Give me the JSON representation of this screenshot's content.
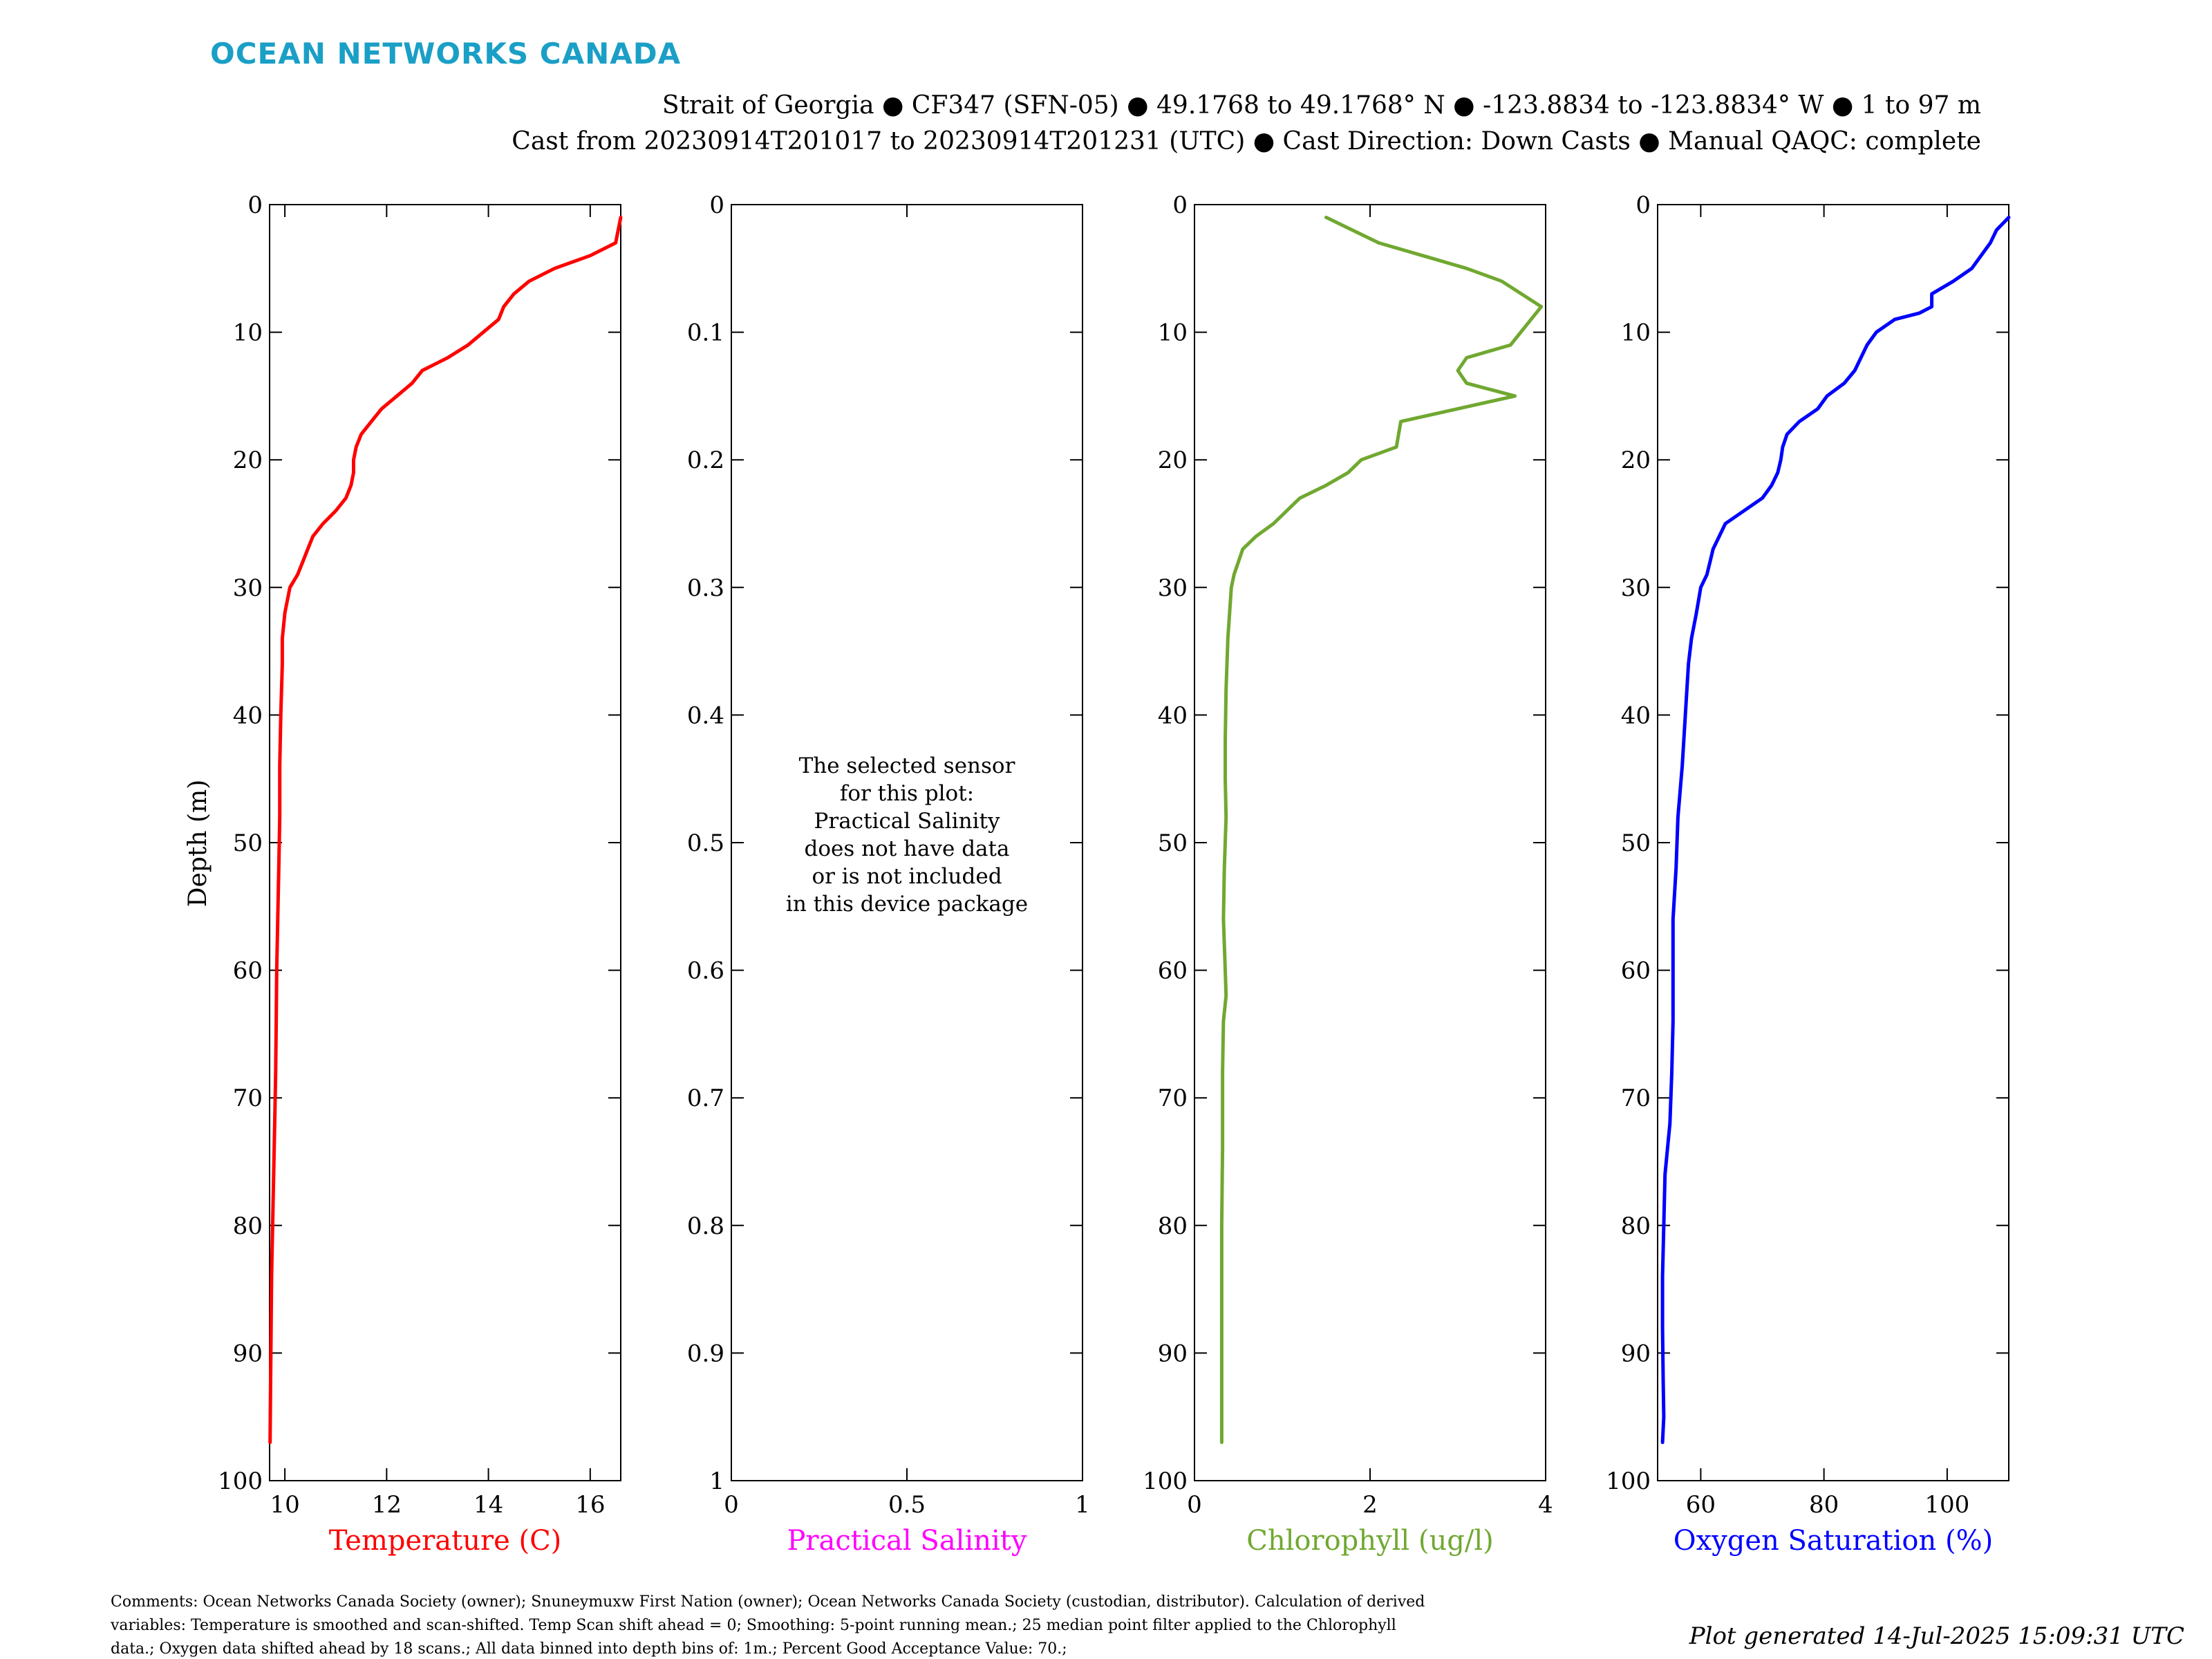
{
  "brand": {
    "text": "OCEAN NETWORKS CANADA",
    "color": "#1a9fc6"
  },
  "header": {
    "line1": "Strait of Georgia ● CF347 (SFN-05) ● 49.1768 to 49.1768° N ● -123.8834 to -123.8834° W ● 1 to 97 m",
    "line2": "Cast from 20230914T201017 to 20230914T201231 (UTC) ● Cast Direction: Down Casts ● Manual QAQC: complete"
  },
  "y_axis_label": "Depth (m)",
  "comments": [
    "Comments: Ocean Networks Canada Society (owner); Snuneymuxw First Nation (owner); Ocean Networks Canada Society (custodian, distributor). Calculation of derived",
    "variables: Temperature is smoothed and scan-shifted. Temp Scan shift ahead = 0; Smoothing: 5-point running mean.; 25 median point filter applied to the Chlorophyll",
    "data.; Oxygen data shifted ahead by 18 scans.; All data binned into depth bins of: 1m.; Percent Good Acceptance Value: 70.;"
  ],
  "generated": "Plot generated 14-Jul-2025 15:09:31 UTC",
  "chart_data": [
    {
      "type": "line",
      "xlabel": "Temperature (C)",
      "ylabel": "Depth (m)",
      "color": "#ff0000",
      "xlim": [
        9.7,
        16.6
      ],
      "xticks": [
        10,
        12,
        14,
        16
      ],
      "ylim": [
        0,
        100
      ],
      "yticks": [
        0,
        10,
        20,
        30,
        40,
        50,
        60,
        70,
        80,
        90,
        100
      ],
      "y_reversed": true,
      "series": [
        {
          "x": [
            16.6,
            16.55,
            16.5,
            16.0,
            15.3,
            14.8,
            14.5,
            14.3,
            14.2,
            13.9,
            13.6,
            13.2,
            12.7,
            12.5,
            12.2,
            11.9,
            11.7,
            11.5,
            11.4,
            11.35,
            11.35,
            11.3,
            11.2,
            11.0,
            10.75,
            10.55,
            10.45,
            10.35,
            10.25,
            10.1,
            10.0,
            9.95,
            9.95,
            9.92,
            9.9,
            9.9,
            9.88,
            9.86,
            9.84,
            9.83,
            9.82,
            9.8,
            9.78,
            9.76,
            9.74,
            9.73,
            9.72,
            9.71
          ],
          "y": [
            1,
            2,
            3,
            4,
            5,
            6,
            7,
            8,
            9,
            10,
            11,
            12,
            13,
            14,
            15,
            16,
            17,
            18,
            19,
            20,
            21,
            22,
            23,
            24,
            25,
            26,
            27,
            28,
            29,
            30,
            32,
            34,
            36,
            40,
            44,
            48,
            52,
            56,
            60,
            64,
            68,
            72,
            76,
            80,
            84,
            88,
            92,
            97
          ]
        }
      ]
    },
    {
      "type": "line",
      "xlabel": "Practical Salinity",
      "ylabel": "",
      "color": "#ff00ff",
      "xlim": [
        0,
        1
      ],
      "xticks": [
        0,
        0.5,
        1
      ],
      "ylim": [
        0,
        1
      ],
      "yticks": [
        0,
        0.1,
        0.2,
        0.3,
        0.4,
        0.5,
        0.6,
        0.7,
        0.8,
        0.9,
        1
      ],
      "y_reversed": true,
      "series": [],
      "message": [
        "The selected sensor",
        "for this plot:",
        "Practical Salinity",
        "does not have data",
        "or is not included",
        "in this device package"
      ]
    },
    {
      "type": "line",
      "xlabel": "Chlorophyll (ug/l)",
      "ylabel": "",
      "color": "#70a830",
      "xlim": [
        0,
        4
      ],
      "xticks": [
        0,
        2,
        4
      ],
      "ylim": [
        0,
        100
      ],
      "yticks": [
        0,
        10,
        20,
        30,
        40,
        50,
        60,
        70,
        80,
        90,
        100
      ],
      "y_reversed": true,
      "series": [
        {
          "x": [
            1.5,
            2.1,
            2.6,
            3.1,
            3.5,
            3.95,
            3.6,
            3.1,
            3.0,
            3.1,
            3.65,
            2.35,
            2.3,
            1.9,
            1.75,
            1.5,
            1.2,
            0.9,
            0.7,
            0.55,
            0.5,
            0.45,
            0.42,
            0.38,
            0.36,
            0.35,
            0.35,
            0.36,
            0.34,
            0.33,
            0.35,
            0.36,
            0.33,
            0.32,
            0.32,
            0.31,
            0.31,
            0.31
          ],
          "y": [
            1,
            3,
            4,
            5,
            6,
            8,
            11,
            12,
            13,
            14,
            15,
            17,
            19,
            20,
            21,
            22,
            23,
            25,
            26,
            27,
            28,
            29,
            30,
            34,
            38,
            42,
            45,
            48,
            52,
            56,
            60,
            62,
            64,
            68,
            74,
            80,
            90,
            97
          ]
        }
      ]
    },
    {
      "type": "line",
      "xlabel": "Oxygen Saturation (%)",
      "ylabel": "",
      "color": "#0000ff",
      "xlim": [
        53,
        110
      ],
      "xticks": [
        60,
        80,
        100
      ],
      "ylim": [
        0,
        100
      ],
      "yticks": [
        0,
        10,
        20,
        30,
        40,
        50,
        60,
        70,
        80,
        90,
        100
      ],
      "y_reversed": true,
      "series": [
        {
          "x": [
            110,
            108,
            107,
            104,
            101,
            97.5,
            97.5,
            95.5,
            91.5,
            88.5,
            87,
            86,
            85,
            83.3,
            80.5,
            79,
            76,
            74,
            73.3,
            73,
            72.5,
            71.5,
            70,
            67,
            64,
            63,
            62,
            61.5,
            61,
            60,
            59.3,
            58.5,
            58,
            57.5,
            57,
            56.3,
            56,
            55.5,
            55.5,
            55.5,
            55.3,
            55,
            54.2,
            54,
            53.8,
            53.8,
            53.9,
            54,
            53.8
          ],
          "y": [
            1,
            2,
            3,
            5,
            6,
            7,
            8,
            8.5,
            9,
            10,
            11,
            12,
            13,
            14,
            15,
            16,
            17,
            18,
            19,
            20,
            21,
            22,
            23,
            24,
            25,
            26,
            27,
            28,
            29,
            30,
            32,
            34,
            36,
            40,
            44,
            48,
            52,
            56,
            60,
            64,
            68,
            72,
            76,
            80,
            84,
            88,
            92,
            95,
            97
          ]
        }
      ]
    }
  ]
}
